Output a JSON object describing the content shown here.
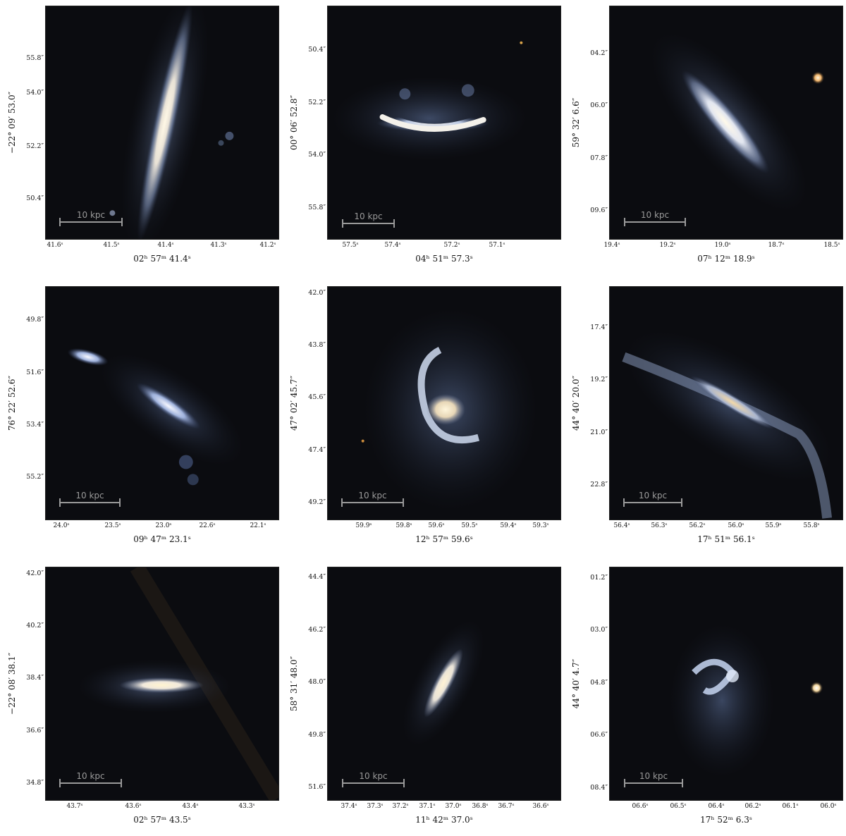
{
  "scalebar_label": "10 kpc",
  "panels": [
    {
      "ylabel": "−22° 09′ 53.0″",
      "xlabel": "02ʰ 57ᵐ 41.4ˢ",
      "yticks": [
        "55.8″",
        "54.0″",
        "52.2″",
        "50.4″"
      ],
      "xticks": [
        "41.6ˢ",
        "41.5ˢ",
        "41.4ˢ",
        "41.3ˢ",
        "41.2ˢ"
      ]
    },
    {
      "ylabel": "00° 06′ 52.8″",
      "xlabel": "04ʰ 51ᵐ 57.3ˢ",
      "yticks": [
        "50.4″",
        "52.2″",
        "54.0″",
        "55.8″"
      ],
      "xticks": [
        "57.5ˢ",
        "57.4ˢ",
        "57.2ˢ",
        "57.1ˢ"
      ]
    },
    {
      "ylabel": "59° 32′ 6.6″",
      "xlabel": "07ʰ 12ᵐ 18.9ˢ",
      "yticks": [
        "04.2″",
        "06.0″",
        "07.8″",
        "09.6″"
      ],
      "xticks": [
        "19.4ˢ",
        "19.2ˢ",
        "19.0ˢ",
        "18.7ˢ",
        "18.5ˢ"
      ]
    },
    {
      "ylabel": "76° 22′ 52.6″",
      "xlabel": "09ʰ 47ᵐ 23.1ˢ",
      "yticks": [
        "49.8″",
        "51.6″",
        "53.4″",
        "55.2″"
      ],
      "xticks": [
        "24.0ˢ",
        "23.5ˢ",
        "23.0ˢ",
        "22.6ˢ",
        "22.1ˢ"
      ]
    },
    {
      "ylabel": "47° 02′ 45.7″",
      "xlabel": "12ʰ 57ᵐ 59.6ˢ",
      "yticks": [
        "42.0″",
        "43.8″",
        "45.6″",
        "47.4″",
        "49.2″"
      ],
      "xticks": [
        "59.9ˢ",
        "59.8ˢ",
        "59.6ˢ",
        "59.5ˢ",
        "59.4ˢ",
        "59.3ˢ"
      ]
    },
    {
      "ylabel": "44° 40′ 20.0″",
      "xlabel": "17ʰ 51ᵐ 56.1ˢ",
      "yticks": [
        "17.4″",
        "19.2″",
        "21.0″",
        "22.8″"
      ],
      "xticks": [
        "56.4ˢ",
        "56.3ˢ",
        "56.2ˢ",
        "56.0ˢ",
        "55.9ˢ",
        "55.8ˢ"
      ]
    },
    {
      "ylabel": "−22° 08′ 38.1″",
      "xlabel": "02ʰ 57ᵐ 43.5ˢ",
      "yticks": [
        "42.0″",
        "40.2″",
        "38.4″",
        "36.6″",
        "34.8″"
      ],
      "xticks": [
        "43.7ˢ",
        "43.6ˢ",
        "43.4ˢ",
        "43.3ˢ"
      ]
    },
    {
      "ylabel": "58° 31′ 48.0″",
      "xlabel": "11ʰ 42ᵐ 37.0ˢ",
      "yticks": [
        "44.4″",
        "46.2″",
        "48.0″",
        "49.8″",
        "51.6″"
      ],
      "xticks": [
        "37.4ˢ",
        "37.3ˢ",
        "37.2ˢ",
        "37.1ˢ",
        "37.0ˢ",
        "36.8ˢ",
        "36.7ˢ",
        "36.6ˢ"
      ]
    },
    {
      "ylabel": "44° 40′ 4.7″",
      "xlabel": "17ʰ 52ᵐ 6.3ˢ",
      "yticks": [
        "01.2″",
        "03.0″",
        "04.8″",
        "06.6″",
        "08.4″"
      ],
      "xticks": [
        "06.6ˢ",
        "06.5ˢ",
        "06.4ˢ",
        "06.2ˢ",
        "06.1ˢ",
        "06.0ˢ"
      ]
    }
  ]
}
